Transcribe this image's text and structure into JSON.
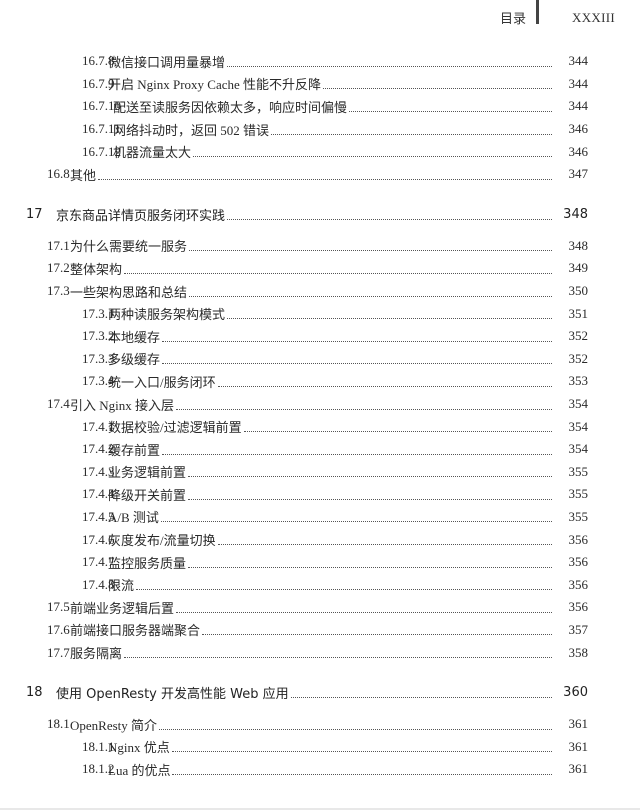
{
  "header": {
    "section_title": "目录",
    "page_number": "XXXIII"
  },
  "entries": [
    {
      "level": 1,
      "number": "16.7.8",
      "title": "微信接口调用量暴增",
      "page": "344"
    },
    {
      "level": 1,
      "number": "16.7.9",
      "title": "开启 Nginx Proxy Cache 性能不升反降",
      "page": "344"
    },
    {
      "level": 1,
      "number": "16.7.10",
      "title": "配送至读服务因依赖太多，响应时间偏慢",
      "page": "344"
    },
    {
      "level": 1,
      "number": "16.7.11",
      "title": "网络抖动时，返回 502 错误",
      "page": "346"
    },
    {
      "level": 1,
      "number": "16.7.12",
      "title": "机器流量太大",
      "page": "346"
    },
    {
      "level": 0,
      "number": "16.8",
      "title": "其他",
      "page": "347"
    },
    {
      "level": "ch",
      "number": "17",
      "title": "京东商品详情页服务闭环实践",
      "page": "348"
    },
    {
      "level": 0,
      "number": "17.1",
      "title": "为什么需要统一服务",
      "page": "348"
    },
    {
      "level": 0,
      "number": "17.2",
      "title": "整体架构",
      "page": "349"
    },
    {
      "level": 0,
      "number": "17.3",
      "title": "一些架构思路和总结",
      "page": "350"
    },
    {
      "level": 1,
      "number": "17.3.1",
      "title": "两种读服务架构模式",
      "page": "351"
    },
    {
      "level": 1,
      "number": "17.3.2",
      "title": "本地缓存",
      "page": "352"
    },
    {
      "level": 1,
      "number": "17.3.3",
      "title": "多级缓存",
      "page": "352"
    },
    {
      "level": 1,
      "number": "17.3.4",
      "title": "统一入口/服务闭环",
      "page": "353"
    },
    {
      "level": 0,
      "number": "17.4",
      "title": "引入 Nginx 接入层",
      "page": "354"
    },
    {
      "level": 1,
      "number": "17.4.1",
      "title": "数据校验/过滤逻辑前置",
      "page": "354"
    },
    {
      "level": 1,
      "number": "17.4.2",
      "title": "缓存前置",
      "page": "354"
    },
    {
      "level": 1,
      "number": "17.4.3",
      "title": "业务逻辑前置",
      "page": "355"
    },
    {
      "level": 1,
      "number": "17.4.4",
      "title": "降级开关前置",
      "page": "355"
    },
    {
      "level": 1,
      "number": "17.4.5",
      "title": "A/B 测试",
      "page": "355"
    },
    {
      "level": 1,
      "number": "17.4.6",
      "title": "灰度发布/流量切换",
      "page": "356"
    },
    {
      "level": 1,
      "number": "17.4.7",
      "title": "监控服务质量",
      "page": "356"
    },
    {
      "level": 1,
      "number": "17.4.8",
      "title": "限流",
      "page": "356"
    },
    {
      "level": 0,
      "number": "17.5",
      "title": "前端业务逻辑后置",
      "page": "356"
    },
    {
      "level": 0,
      "number": "17.6",
      "title": "前端接口服务器端聚合",
      "page": "357"
    },
    {
      "level": 0,
      "number": "17.7",
      "title": "服务隔离",
      "page": "358"
    },
    {
      "level": "ch",
      "number": "18",
      "title": "使用 OpenResty 开发高性能 Web 应用",
      "page": "360"
    },
    {
      "level": 0,
      "number": "18.1",
      "title": "OpenResty 简介",
      "page": "361"
    },
    {
      "level": 1,
      "number": "18.1.1",
      "title": "Nginx 优点",
      "page": "361"
    },
    {
      "level": 1,
      "number": "18.1.2",
      "title": "Lua 的优点",
      "page": "361"
    }
  ]
}
